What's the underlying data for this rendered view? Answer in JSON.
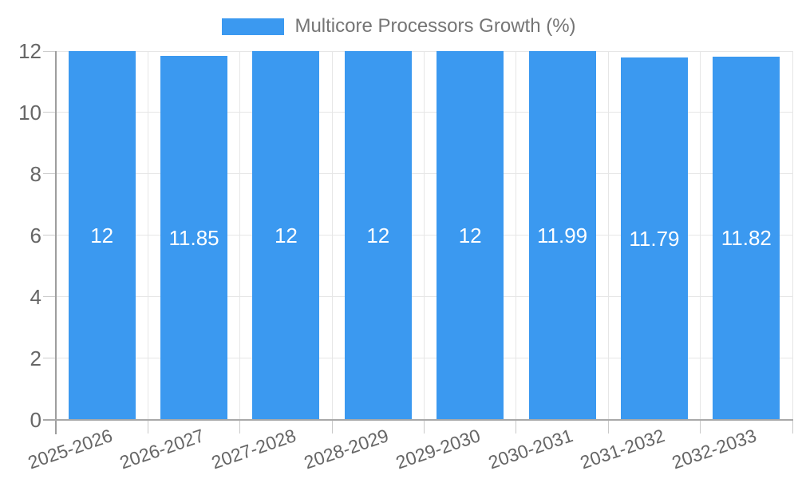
{
  "chart_data": {
    "type": "bar",
    "legend": "Multicore Processors Growth (%)",
    "legend_position": "top",
    "categories": [
      "2025-2026",
      "2026-2027",
      "2027-2028",
      "2028-2029",
      "2029-2030",
      "2030-2031",
      "2031-2032",
      "2032-2033"
    ],
    "series": [
      {
        "name": "Multicore Processors Growth (%)",
        "values": [
          12,
          11.85,
          12,
          12,
          12,
          11.99,
          11.79,
          11.82
        ]
      }
    ],
    "value_labels": [
      "12",
      "11.85",
      "12",
      "12",
      "12",
      "11.99",
      "11.79",
      "11.82"
    ],
    "xlabel": "",
    "ylabel": "",
    "ylim": [
      0,
      12
    ],
    "yticks": [
      0,
      2,
      4,
      6,
      8,
      10,
      12
    ],
    "grid": true,
    "colors": {
      "bar": "#3B99F0",
      "value_label": "#FFFFFF",
      "axis_text": "#666666",
      "legend_text": "#757575",
      "gridline": "#E6E6E6",
      "tick": "#CCCCCC",
      "axis_line": "#9E9E9E",
      "baseline": "#A9A9A9",
      "background": "#FFFFFF"
    }
  }
}
